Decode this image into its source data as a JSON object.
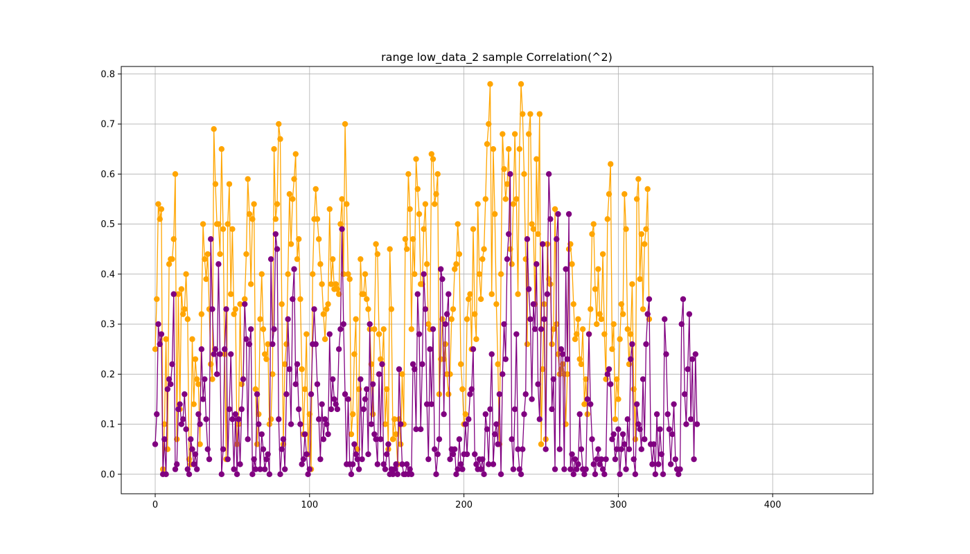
{
  "chart_data": {
    "type": "line",
    "title": "range low_data_2 sample Correlation(^2)",
    "xlabel": "",
    "ylabel": "",
    "xlim": [
      -22,
      465
    ],
    "ylim": [
      -0.039,
      0.815
    ],
    "xticks": [
      0,
      100,
      200,
      300,
      400
    ],
    "yticks": [
      0.0,
      0.1,
      0.2,
      0.3,
      0.4,
      0.5,
      0.6,
      0.7,
      0.8
    ],
    "xtick_labels": [
      "0",
      "100",
      "200",
      "300",
      "400"
    ],
    "ytick_labels": [
      "0.0",
      "0.1",
      "0.2",
      "0.3",
      "0.4",
      "0.5",
      "0.6",
      "0.7",
      "0.8"
    ],
    "grid": true,
    "legend": "none",
    "marker": "circle",
    "series": [
      {
        "color": "#ffa500",
        "values": [
          0.25,
          0.35,
          0.54,
          0.51,
          0.53,
          0.01,
          0.1,
          0.27,
          0.05,
          0.42,
          0.43,
          0.43,
          0.47,
          0.6,
          0.07,
          0.36,
          0.13,
          0.37,
          0.32,
          0.33,
          0.4,
          0.31,
          0.03,
          0.02,
          0.27,
          0.14,
          0.23,
          0.19,
          0.18,
          0.06,
          0.32,
          0.5,
          0.43,
          0.39,
          0.44,
          0.33,
          0.22,
          0.19,
          0.69,
          0.58,
          0.5,
          0.5,
          0.44,
          0.65,
          0.49,
          0.24,
          0.03,
          0.5,
          0.58,
          0.36,
          0.49,
          0.32,
          0.33,
          0.06,
          0.1,
          0.34,
          0.18,
          0.19,
          0.35,
          0.44,
          0.59,
          0.52,
          0.38,
          0.51,
          0.54,
          0.17,
          0.06,
          0.12,
          0.31,
          0.4,
          0.29,
          0.24,
          0.23,
          0.26,
          0.1,
          0.11,
          0.2,
          0.65,
          0.51,
          0.54,
          0.7,
          0.67,
          0.34,
          0.06,
          0.22,
          0.26,
          0.4,
          0.56,
          0.46,
          0.55,
          0.59,
          0.64,
          0.43,
          0.47,
          0.35,
          0.21,
          0.08,
          0.17,
          0.28,
          0.04,
          0.12,
          0.01,
          0.4,
          0.51,
          0.57,
          0.51,
          0.47,
          0.42,
          0.38,
          0.32,
          0.27,
          0.33,
          0.34,
          0.53,
          0.38,
          0.43,
          0.37,
          0.38,
          0.37,
          0.36,
          0.5,
          0.55,
          0.4,
          0.7,
          0.54,
          0.4,
          0.39,
          0.08,
          0.12,
          0.24,
          0.31,
          0.05,
          0.17,
          0.43,
          0.36,
          0.36,
          0.4,
          0.35,
          0.33,
          0.29,
          0.22,
          0.12,
          0.29,
          0.46,
          0.44,
          0.28,
          0.23,
          0.22,
          0.29,
          0.1,
          0.17,
          0.05,
          0.45,
          0.33,
          0.07,
          0.11,
          0.08,
          0.02,
          0.11,
          0.06,
          0.2,
          0.1,
          0.47,
          0.45,
          0.6,
          0.53,
          0.29,
          0.47,
          0.4,
          0.63,
          0.57,
          0.52,
          0.38,
          0.38,
          0.49,
          0.54,
          0.42,
          0.3,
          0.29,
          0.64,
          0.63,
          0.54,
          0.56,
          0.6,
          0.16,
          0.23,
          0.31,
          0.23,
          0.26,
          0.2,
          0.16,
          0.2,
          0.31,
          0.33,
          0.41,
          0.42,
          0.5,
          0.44,
          0.22,
          0.17,
          0.1,
          0.12,
          0.31,
          0.35,
          0.36,
          0.25,
          0.49,
          0.32,
          0.27,
          0.54,
          0.4,
          0.35,
          0.43,
          0.45,
          0.55,
          0.66,
          0.7,
          0.78,
          0.36,
          0.65,
          0.52,
          0.34,
          0.22,
          0.06,
          0.4,
          0.68,
          0.61,
          0.55,
          0.58,
          0.65,
          0.45,
          0.42,
          0.54,
          0.68,
          0.55,
          0.36,
          0.65,
          0.78,
          0.72,
          0.6,
          0.43,
          0.26,
          0.68,
          0.72,
          0.5,
          0.49,
          0.34,
          0.63,
          0.48,
          0.72,
          0.06,
          0.21,
          0.34,
          0.07,
          0.46,
          0.39,
          0.38,
          0.26,
          0.29,
          0.53,
          0.3,
          0.24,
          0.2,
          0.21,
          0.22,
          0.2,
          0.1,
          0.2,
          0.45,
          0.46,
          0.42,
          0.34,
          0.27,
          0.28,
          0.31,
          0.23,
          0.22,
          0.29,
          0.14,
          0.19,
          0.12,
          0.28,
          0.33,
          0.48,
          0.5,
          0.37,
          0.3,
          0.41,
          0.32,
          0.31,
          0.44,
          0.28,
          0.19,
          0.51,
          0.56,
          0.62,
          0.25,
          0.3,
          0.11,
          0.19,
          0.15,
          0.27,
          0.34,
          0.32,
          0.56,
          0.49,
          0.29,
          0.22,
          0.28,
          0.38,
          0.17,
          0.07,
          0.55,
          0.59,
          0.39,
          0.48,
          0.33,
          0.46,
          0.49,
          0.57,
          0.31
        ]
      },
      {
        "color": "#800080",
        "values": [
          0.06,
          0.12,
          0.3,
          0.26,
          0.28,
          0.0,
          0.07,
          0.0,
          0.17,
          0.19,
          0.18,
          0.22,
          0.36,
          0.01,
          0.02,
          0.13,
          0.14,
          0.1,
          0.11,
          0.16,
          0.09,
          0.01,
          0.0,
          0.07,
          0.05,
          0.02,
          0.04,
          0.01,
          0.12,
          0.1,
          0.25,
          0.15,
          0.19,
          0.11,
          0.05,
          0.03,
          0.47,
          0.33,
          0.24,
          0.25,
          0.2,
          0.42,
          0.24,
          0.0,
          0.05,
          0.25,
          0.33,
          0.03,
          0.13,
          0.24,
          0.11,
          0.01,
          0.12,
          0.0,
          0.11,
          0.02,
          0.13,
          0.19,
          0.34,
          0.27,
          0.07,
          0.26,
          0.29,
          0.0,
          0.03,
          0.01,
          0.16,
          0.1,
          0.01,
          0.08,
          0.05,
          0.01,
          0.03,
          0.04,
          0.0,
          0.43,
          0.26,
          0.29,
          0.48,
          0.45,
          0.11,
          0.0,
          0.05,
          0.07,
          0.01,
          0.16,
          0.31,
          0.21,
          0.1,
          0.35,
          0.41,
          0.18,
          0.22,
          0.13,
          0.1,
          0.02,
          0.03,
          0.08,
          0.04,
          0.0,
          0.01,
          0.16,
          0.26,
          0.33,
          0.26,
          0.18,
          0.11,
          0.03,
          0.14,
          0.07,
          0.11,
          0.1,
          0.08,
          0.28,
          0.13,
          0.19,
          0.15,
          0.14,
          0.13,
          0.25,
          0.29,
          0.49,
          0.3,
          0.16,
          0.02,
          0.15,
          0.02,
          0.0,
          0.02,
          0.06,
          0.04,
          0.03,
          0.01,
          0.19,
          0.03,
          0.13,
          0.15,
          0.17,
          0.04,
          0.3,
          0.1,
          0.18,
          0.08,
          0.07,
          0.02,
          0.2,
          0.07,
          0.22,
          0.02,
          0.01,
          0.04,
          0.06,
          0.0,
          0.01,
          0.0,
          0.01,
          0.02,
          0.0,
          0.21,
          0.1,
          0.02,
          0.0,
          0.0,
          0.02,
          0.0,
          0.01,
          0.0,
          0.22,
          0.21,
          0.09,
          0.36,
          0.28,
          0.09,
          0.22,
          0.4,
          0.33,
          0.14,
          0.03,
          0.25,
          0.14,
          0.29,
          0.05,
          0.0,
          0.04,
          0.07,
          0.41,
          0.39,
          0.12,
          0.3,
          0.32,
          0.36,
          0.03,
          0.05,
          0.04,
          0.05,
          0.0,
          0.01,
          0.07,
          0.02,
          0.01,
          0.04,
          0.1,
          0.04,
          0.11,
          0.16,
          0.17,
          0.25,
          0.04,
          0.02,
          0.01,
          0.03,
          0.01,
          0.03,
          0.0,
          0.12,
          0.09,
          0.02,
          0.13,
          0.24,
          0.02,
          0.08,
          0.1,
          0.06,
          0.16,
          0.0,
          0.2,
          0.3,
          0.23,
          0.43,
          0.48,
          0.6,
          0.07,
          0.01,
          0.13,
          0.28,
          0.05,
          0.01,
          0.0,
          0.05,
          0.12,
          0.16,
          0.47,
          0.37,
          0.31,
          0.15,
          0.34,
          0.29,
          0.42,
          0.18,
          0.11,
          0.29,
          0.46,
          0.31,
          0.05,
          0.36,
          0.6,
          0.51,
          0.13,
          0.19,
          0.01,
          0.47,
          0.52,
          0.05,
          0.25,
          0.24,
          0.01,
          0.41,
          0.23,
          0.52,
          0.01,
          0.04,
          0.0,
          0.03,
          0.01,
          0.02,
          0.12,
          0.05,
          0.01,
          0.0,
          0.01,
          0.15,
          0.28,
          0.14,
          0.07,
          0.02,
          0.0,
          0.03,
          0.05,
          0.02,
          0.03,
          0.01,
          0.0,
          0.03,
          0.2,
          0.21,
          0.18,
          0.07,
          0.08,
          0.03,
          0.05,
          0.09,
          0.0,
          0.05,
          0.08,
          0.06,
          0.01,
          0.11,
          0.05,
          0.23,
          0.26,
          0.03,
          0.0,
          0.14,
          0.1,
          0.09,
          0.05,
          0.19,
          0.07,
          0.26,
          0.32,
          0.35,
          0.06,
          0.02,
          0.06,
          0.0,
          0.12,
          0.02,
          0.09,
          0.04,
          0.0,
          0.31,
          0.24,
          0.12,
          0.09,
          0.02,
          0.08,
          0.14,
          0.03,
          0.01,
          0.0,
          0.01,
          0.3,
          0.35,
          0.16,
          0.1,
          0.21,
          0.32,
          0.11,
          0.23,
          0.03,
          0.24,
          0.1
        ]
      }
    ]
  }
}
